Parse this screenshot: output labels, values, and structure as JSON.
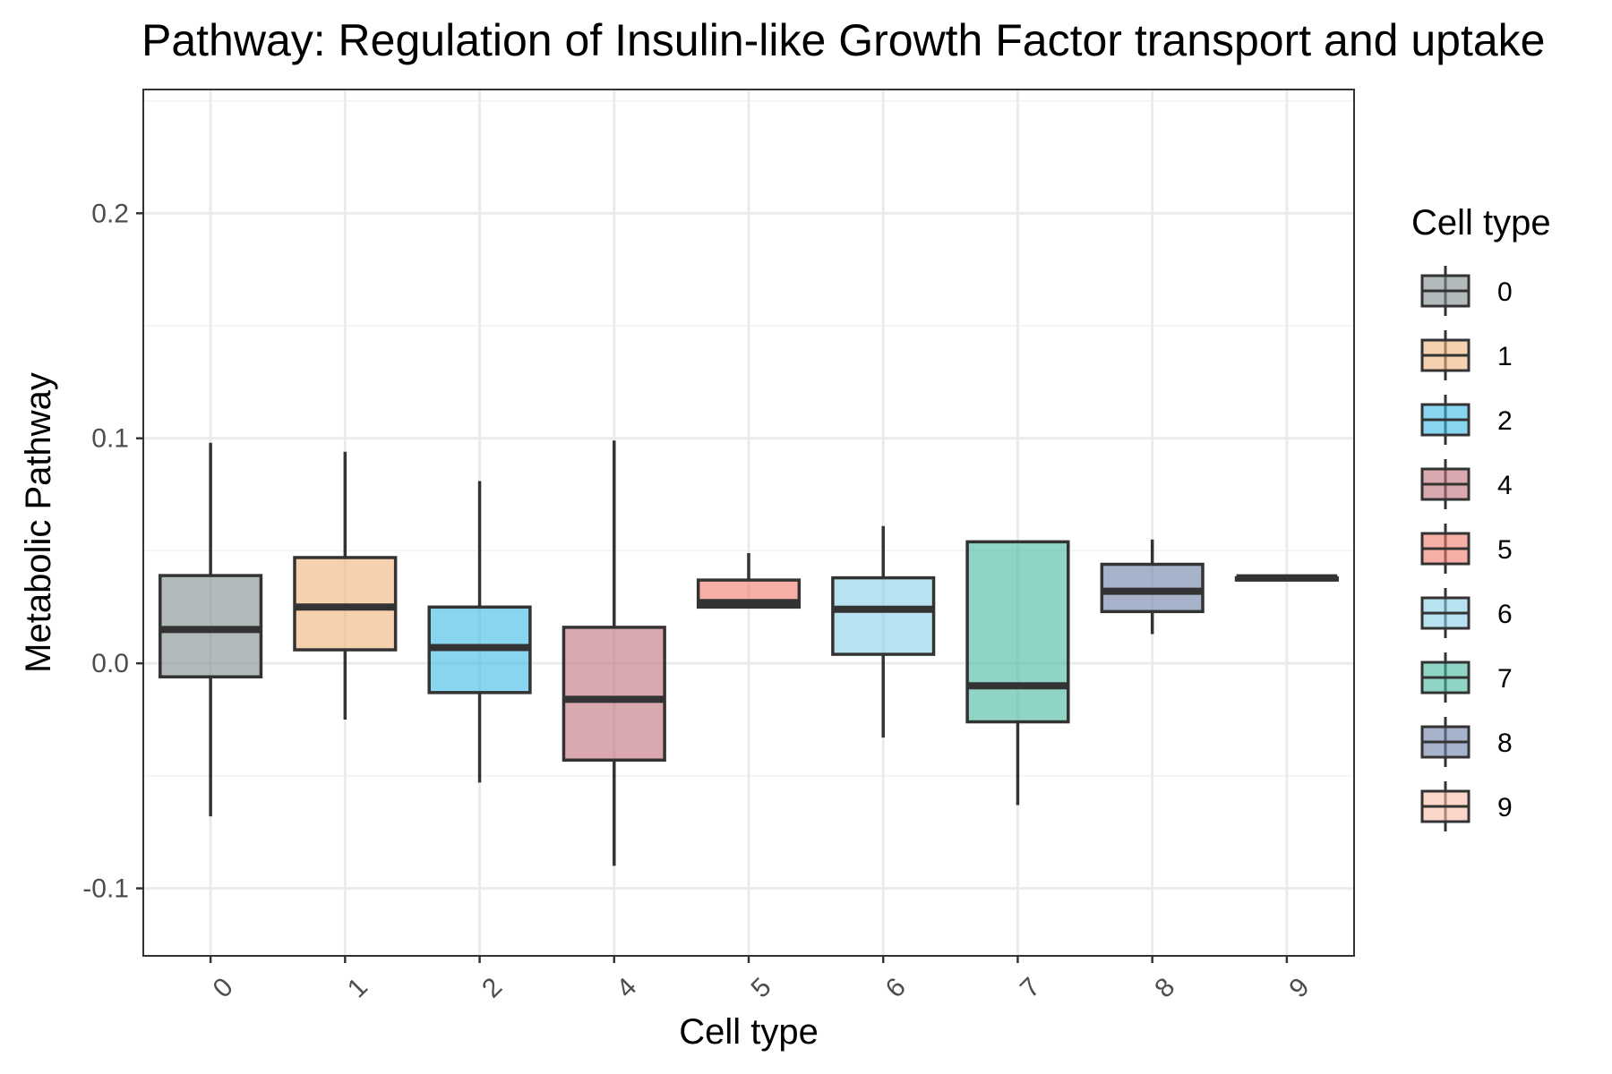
{
  "chart_data": {
    "type": "box",
    "title": "Pathway: Regulation of Insulin-like Growth Factor  transport and uptake",
    "xlabel": "Cell type",
    "ylabel": "Metabolic Pathway",
    "ylim": [
      -0.13,
      0.255
    ],
    "yticks": [
      -0.1,
      0.0,
      0.1,
      0.2
    ],
    "ytick_labels": [
      "-0.1",
      "0.0",
      "0.1",
      "0.2"
    ],
    "grid": true,
    "legend": {
      "title": "Cell type",
      "position": "right"
    },
    "categories": [
      "0",
      "1",
      "2",
      "4",
      "5",
      "6",
      "7",
      "8",
      "9"
    ],
    "boxes": [
      {
        "name": "0",
        "color": "#7f8c8d",
        "whisker_low": -0.068,
        "q1": -0.006,
        "median": 0.015,
        "q3": 0.039,
        "whisker_high": 0.098
      },
      {
        "name": "1",
        "color": "#f0b27a",
        "whisker_low": -0.025,
        "q1": 0.006,
        "median": 0.025,
        "q3": 0.047,
        "whisker_high": 0.094
      },
      {
        "name": "2",
        "color": "#3bb9e6",
        "whisker_low": -0.053,
        "q1": -0.013,
        "median": 0.007,
        "q3": 0.025,
        "whisker_high": 0.081
      },
      {
        "name": "4",
        "color": "#c0707a",
        "whisker_low": -0.09,
        "q1": -0.043,
        "median": -0.016,
        "q3": 0.016,
        "whisker_high": 0.099
      },
      {
        "name": "5",
        "color": "#f1786a",
        "whisker_low": 0.025,
        "q1": 0.025,
        "median": 0.027,
        "q3": 0.037,
        "whisker_high": 0.049
      },
      {
        "name": "6",
        "color": "#85d1e5",
        "whisker_low": -0.033,
        "q1": 0.004,
        "median": 0.024,
        "q3": 0.038,
        "whisker_high": 0.061
      },
      {
        "name": "7",
        "color": "#45b79e",
        "whisker_low": -0.063,
        "q1": -0.026,
        "median": -0.01,
        "q3": 0.054,
        "whisker_high": 0.054
      },
      {
        "name": "8",
        "color": "#6d7fa8",
        "whisker_low": 0.013,
        "q1": 0.023,
        "median": 0.032,
        "q3": 0.044,
        "whisker_high": 0.055
      },
      {
        "name": "9",
        "color": "#f8bca7",
        "whisker_low": 0.037,
        "q1": 0.037,
        "median": 0.038,
        "q3": 0.038,
        "whisker_high": 0.038
      }
    ]
  }
}
